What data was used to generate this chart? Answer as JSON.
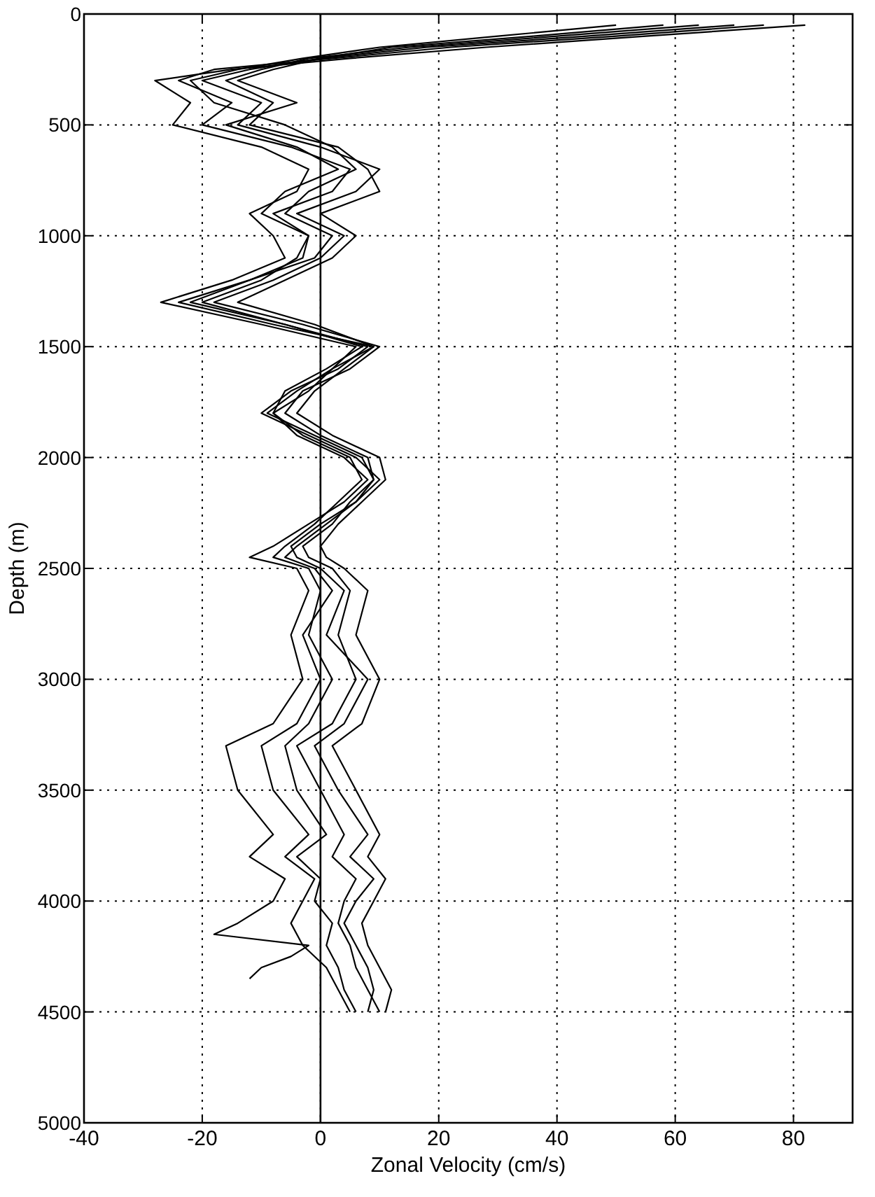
{
  "chart_data": {
    "type": "line",
    "xlabel": "Zonal Velocity (cm/s)",
    "ylabel": "Depth (m)",
    "xlim": [
      -40,
      90
    ],
    "xticks": [
      -40,
      -20,
      0,
      20,
      40,
      60,
      80
    ],
    "ylim": [
      5000,
      0
    ],
    "yticks": [
      0,
      500,
      1000,
      1500,
      2000,
      2500,
      3000,
      3500,
      4000,
      4500,
      5000
    ],
    "grid": true,
    "marker": "none",
    "line_style": "solid",
    "ref_lines": [
      {
        "axis": "x",
        "value": 0,
        "color": "#000000",
        "line_style": "solid"
      }
    ],
    "series": [
      {
        "color": "#000000",
        "x": [
          82,
          55,
          28,
          5,
          -15,
          -28,
          -22,
          -25,
          -10,
          -2,
          -4,
          -12,
          -8,
          -6,
          -15,
          -27,
          -10,
          6,
          2,
          -2,
          -8,
          -4,
          4,
          8,
          4,
          -2,
          -8,
          -12,
          -4,
          -2,
          -5,
          -3,
          -8,
          -16,
          -14,
          -8,
          -12,
          -6,
          -8,
          -14,
          -18,
          -2,
          -5,
          -10,
          -12
        ],
        "values": [
          50,
          100,
          150,
          200,
          250,
          300,
          400,
          500,
          600,
          700,
          800,
          900,
          1000,
          1100,
          1200,
          1300,
          1400,
          1500,
          1600,
          1700,
          1800,
          1900,
          2000,
          2100,
          2200,
          2300,
          2400,
          2450,
          2500,
          2600,
          2800,
          3000,
          3200,
          3300,
          3500,
          3700,
          3800,
          3900,
          4000,
          4100,
          4150,
          4200,
          4250,
          4300,
          4350
        ]
      },
      {
        "color": "#000000",
        "x": [
          75,
          50,
          22,
          2,
          -18,
          -24,
          -15,
          -20,
          -5,
          5,
          2,
          -8,
          -2,
          -3,
          -12,
          -22,
          -6,
          8,
          3,
          -5,
          -10,
          -2,
          6,
          10,
          6,
          1,
          -4,
          -6,
          -1,
          2,
          -3,
          0,
          -4,
          -10,
          -8,
          -2,
          -6,
          -1,
          -3,
          -5,
          -3,
          1,
          3,
          5
        ],
        "values": [
          50,
          100,
          150,
          200,
          250,
          300,
          400,
          500,
          600,
          700,
          800,
          900,
          1000,
          1100,
          1200,
          1300,
          1400,
          1500,
          1600,
          1700,
          1800,
          1900,
          2000,
          2100,
          2200,
          2300,
          2400,
          2450,
          2500,
          2600,
          2800,
          3000,
          3200,
          3300,
          3500,
          3700,
          3800,
          3900,
          4000,
          4100,
          4200,
          4300,
          4400,
          4500
        ]
      },
      {
        "color": "#000000",
        "x": [
          70,
          45,
          18,
          0,
          -12,
          -20,
          -10,
          -14,
          0,
          10,
          6,
          -4,
          4,
          0,
          -8,
          -18,
          -3,
          10,
          5,
          -3,
          -6,
          0,
          8,
          9,
          5,
          2,
          -3,
          -2,
          2,
          5,
          3,
          6,
          2,
          -4,
          0,
          4,
          2,
          6,
          4,
          3,
          5,
          6,
          8,
          10
        ],
        "values": [
          50,
          100,
          150,
          200,
          250,
          300,
          400,
          500,
          600,
          700,
          800,
          900,
          1000,
          1100,
          1200,
          1300,
          1400,
          1500,
          1600,
          1700,
          1800,
          1900,
          2000,
          2100,
          2200,
          2300,
          2400,
          2450,
          2500,
          2600,
          2800,
          3000,
          3200,
          3300,
          3500,
          3700,
          3800,
          3900,
          4000,
          4100,
          4200,
          4300,
          4400,
          4500
        ]
      },
      {
        "color": "#000000",
        "x": [
          64,
          40,
          15,
          -2,
          -10,
          -16,
          -8,
          -12,
          3,
          8,
          10,
          0,
          6,
          2,
          -6,
          -14,
          -1,
          9,
          4,
          -1,
          -4,
          2,
          10,
          11,
          7,
          3,
          0,
          1,
          4,
          8,
          6,
          10,
          7,
          2,
          6,
          10,
          8,
          11,
          9,
          7,
          8,
          10,
          12,
          11
        ],
        "values": [
          50,
          100,
          150,
          200,
          250,
          300,
          400,
          500,
          600,
          700,
          800,
          900,
          1000,
          1100,
          1200,
          1300,
          1400,
          1500,
          1600,
          1700,
          1800,
          1900,
          2000,
          2100,
          2200,
          2300,
          2400,
          2450,
          2500,
          2600,
          2800,
          3000,
          3200,
          3300,
          3500,
          3700,
          3800,
          3900,
          4000,
          4100,
          4200,
          4300,
          4400,
          4500
        ]
      },
      {
        "color": "#000000",
        "x": [
          58,
          36,
          12,
          0,
          -8,
          -14,
          -4,
          -16,
          -4,
          3,
          -6,
          -10,
          -2,
          -4,
          -10,
          -20,
          -6,
          7,
          1,
          -6,
          -8,
          -3,
          5,
          7,
          3,
          -1,
          -6,
          -8,
          -2,
          0,
          -2,
          2,
          -2,
          -6,
          -4,
          1,
          -4,
          0,
          -1,
          2,
          1,
          3,
          4,
          6
        ],
        "values": [
          50,
          100,
          150,
          200,
          250,
          300,
          400,
          500,
          600,
          700,
          800,
          900,
          1000,
          1100,
          1200,
          1300,
          1400,
          1500,
          1600,
          1700,
          1800,
          1900,
          2000,
          2100,
          2200,
          2300,
          2400,
          2450,
          2500,
          2600,
          2800,
          3000,
          3200,
          3300,
          3500,
          3700,
          3800,
          3900,
          4000,
          4100,
          4200,
          4300,
          4400,
          4500
        ]
      },
      {
        "color": "#000000",
        "x": [
          50,
          30,
          10,
          -3,
          -14,
          -22,
          -18,
          -6,
          2,
          6,
          -2,
          -6,
          2,
          -1,
          -12,
          -24,
          -8,
          9,
          2,
          -4,
          -9,
          -1,
          7,
          9,
          6,
          0,
          -5,
          -4,
          0,
          4,
          1,
          8,
          4,
          -1,
          3,
          8,
          5,
          9,
          6,
          4,
          6,
          8,
          9,
          8
        ],
        "values": [
          50,
          100,
          150,
          200,
          250,
          300,
          400,
          500,
          600,
          700,
          800,
          900,
          1000,
          1100,
          1200,
          1300,
          1400,
          1500,
          1600,
          1700,
          1800,
          1900,
          2000,
          2100,
          2200,
          2300,
          2400,
          2450,
          2500,
          2600,
          2800,
          3000,
          3200,
          3300,
          3500,
          3700,
          3800,
          3900,
          4000,
          4100,
          4200,
          4300,
          4400,
          4500
        ]
      }
    ]
  }
}
